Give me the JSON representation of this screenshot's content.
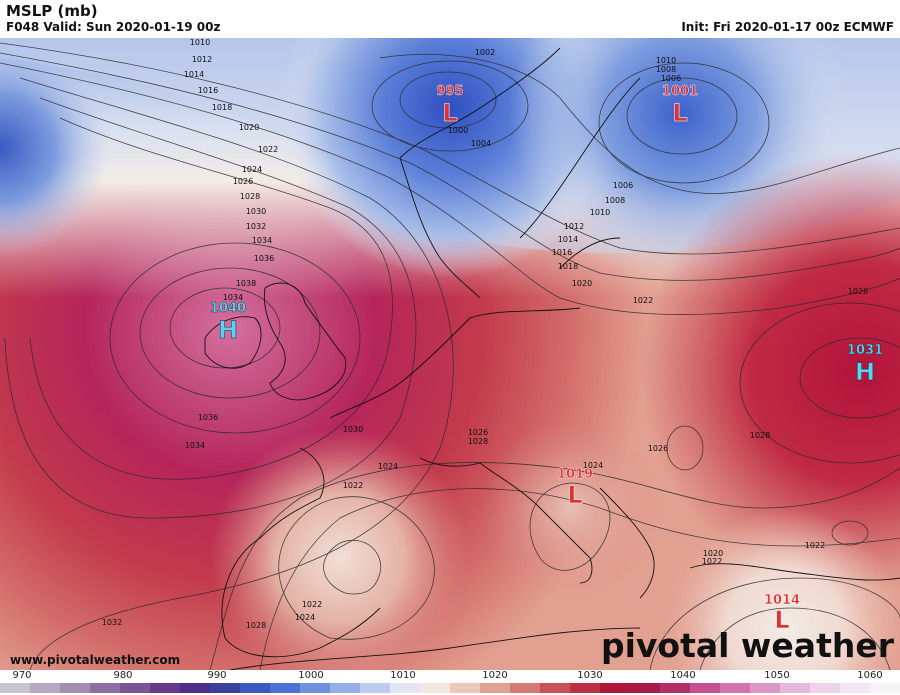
{
  "header": {
    "title": "MSLP (mb)",
    "valid": "F048 Valid: Sun 2020-01-19 00z",
    "init": "Init: Fri 2020-01-17 00z ECMWF"
  },
  "pressure_centers": [
    {
      "type": "L",
      "value": "995"
    },
    {
      "type": "L",
      "value": "1001"
    },
    {
      "type": "H",
      "value": "1040"
    },
    {
      "type": "H",
      "value": "1031"
    },
    {
      "type": "L",
      "value": "1019"
    },
    {
      "type": "L",
      "value": "1014"
    }
  ],
  "isobar_labels": [
    "1010",
    "1012",
    "1014",
    "1016",
    "1018",
    "1020",
    "1022",
    "1024",
    "1026",
    "1028",
    "1030",
    "1032",
    "1034",
    "1036",
    "1038",
    "1036",
    "1034",
    "1002",
    "1000",
    "1004",
    "1010",
    "1008",
    "1006",
    "1006",
    "1008",
    "1010",
    "1012",
    "1014",
    "1016",
    "1018",
    "1020",
    "1022",
    "1026",
    "1028",
    "1026",
    "1026",
    "1028",
    "1030",
    "1024",
    "1022",
    "1024",
    "1022",
    "1020",
    "1022",
    "1032",
    "1028",
    "1022",
    "1024",
    "1034"
  ],
  "footer": {
    "website": "www.pivotalweather.com",
    "brand": "pivotal weather"
  },
  "colorbar": {
    "ticks": [
      "970",
      "980",
      "990",
      "1000",
      "1010",
      "1020",
      "1030",
      "1040",
      "1050",
      "1060"
    ],
    "colors": [
      "#c8c3cc",
      "#b5a9bf",
      "#a28db1",
      "#8c6ea3",
      "#7a5596",
      "#683b8a",
      "#4d2f8a",
      "#3b3fa0",
      "#3a59c2",
      "#4a72d4",
      "#6f90dd",
      "#95afe6",
      "#bccbee",
      "#e2e6f2",
      "#f3e7e0",
      "#ecc7bd",
      "#e0a096",
      "#d57a73",
      "#c95257",
      "#bc2f44",
      "#b0173a",
      "#a61a45",
      "#b33066",
      "#c4508c",
      "#d274ab",
      "#dd97c6",
      "#e6b8db",
      "#eed3ea",
      "#f3e5f3",
      "#f7f2f7"
    ]
  }
}
